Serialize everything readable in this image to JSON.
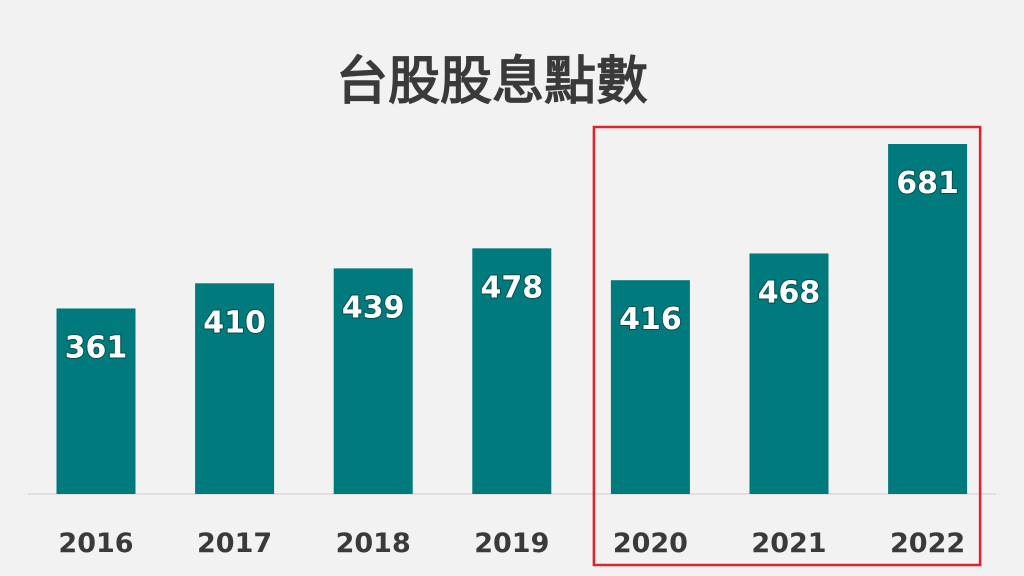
{
  "chart_data": {
    "type": "bar",
    "title": "台股股息點數",
    "xlabel": "",
    "ylabel": "",
    "categories": [
      "2016",
      "2017",
      "2018",
      "2019",
      "2020",
      "2021",
      "2022"
    ],
    "values": [
      361,
      410,
      439,
      478,
      416,
      468,
      681
    ],
    "ylim": [
      0,
      700
    ],
    "grid": false,
    "legend": "none",
    "highlight": {
      "from": "2020",
      "to": "2022",
      "color": "#e0222a"
    }
  },
  "colors": {
    "bar": "#007a7c",
    "label": "#ffffff",
    "text": "#3a3a3a",
    "axis": "#d9d9d9",
    "background": "#f2f2f2"
  }
}
